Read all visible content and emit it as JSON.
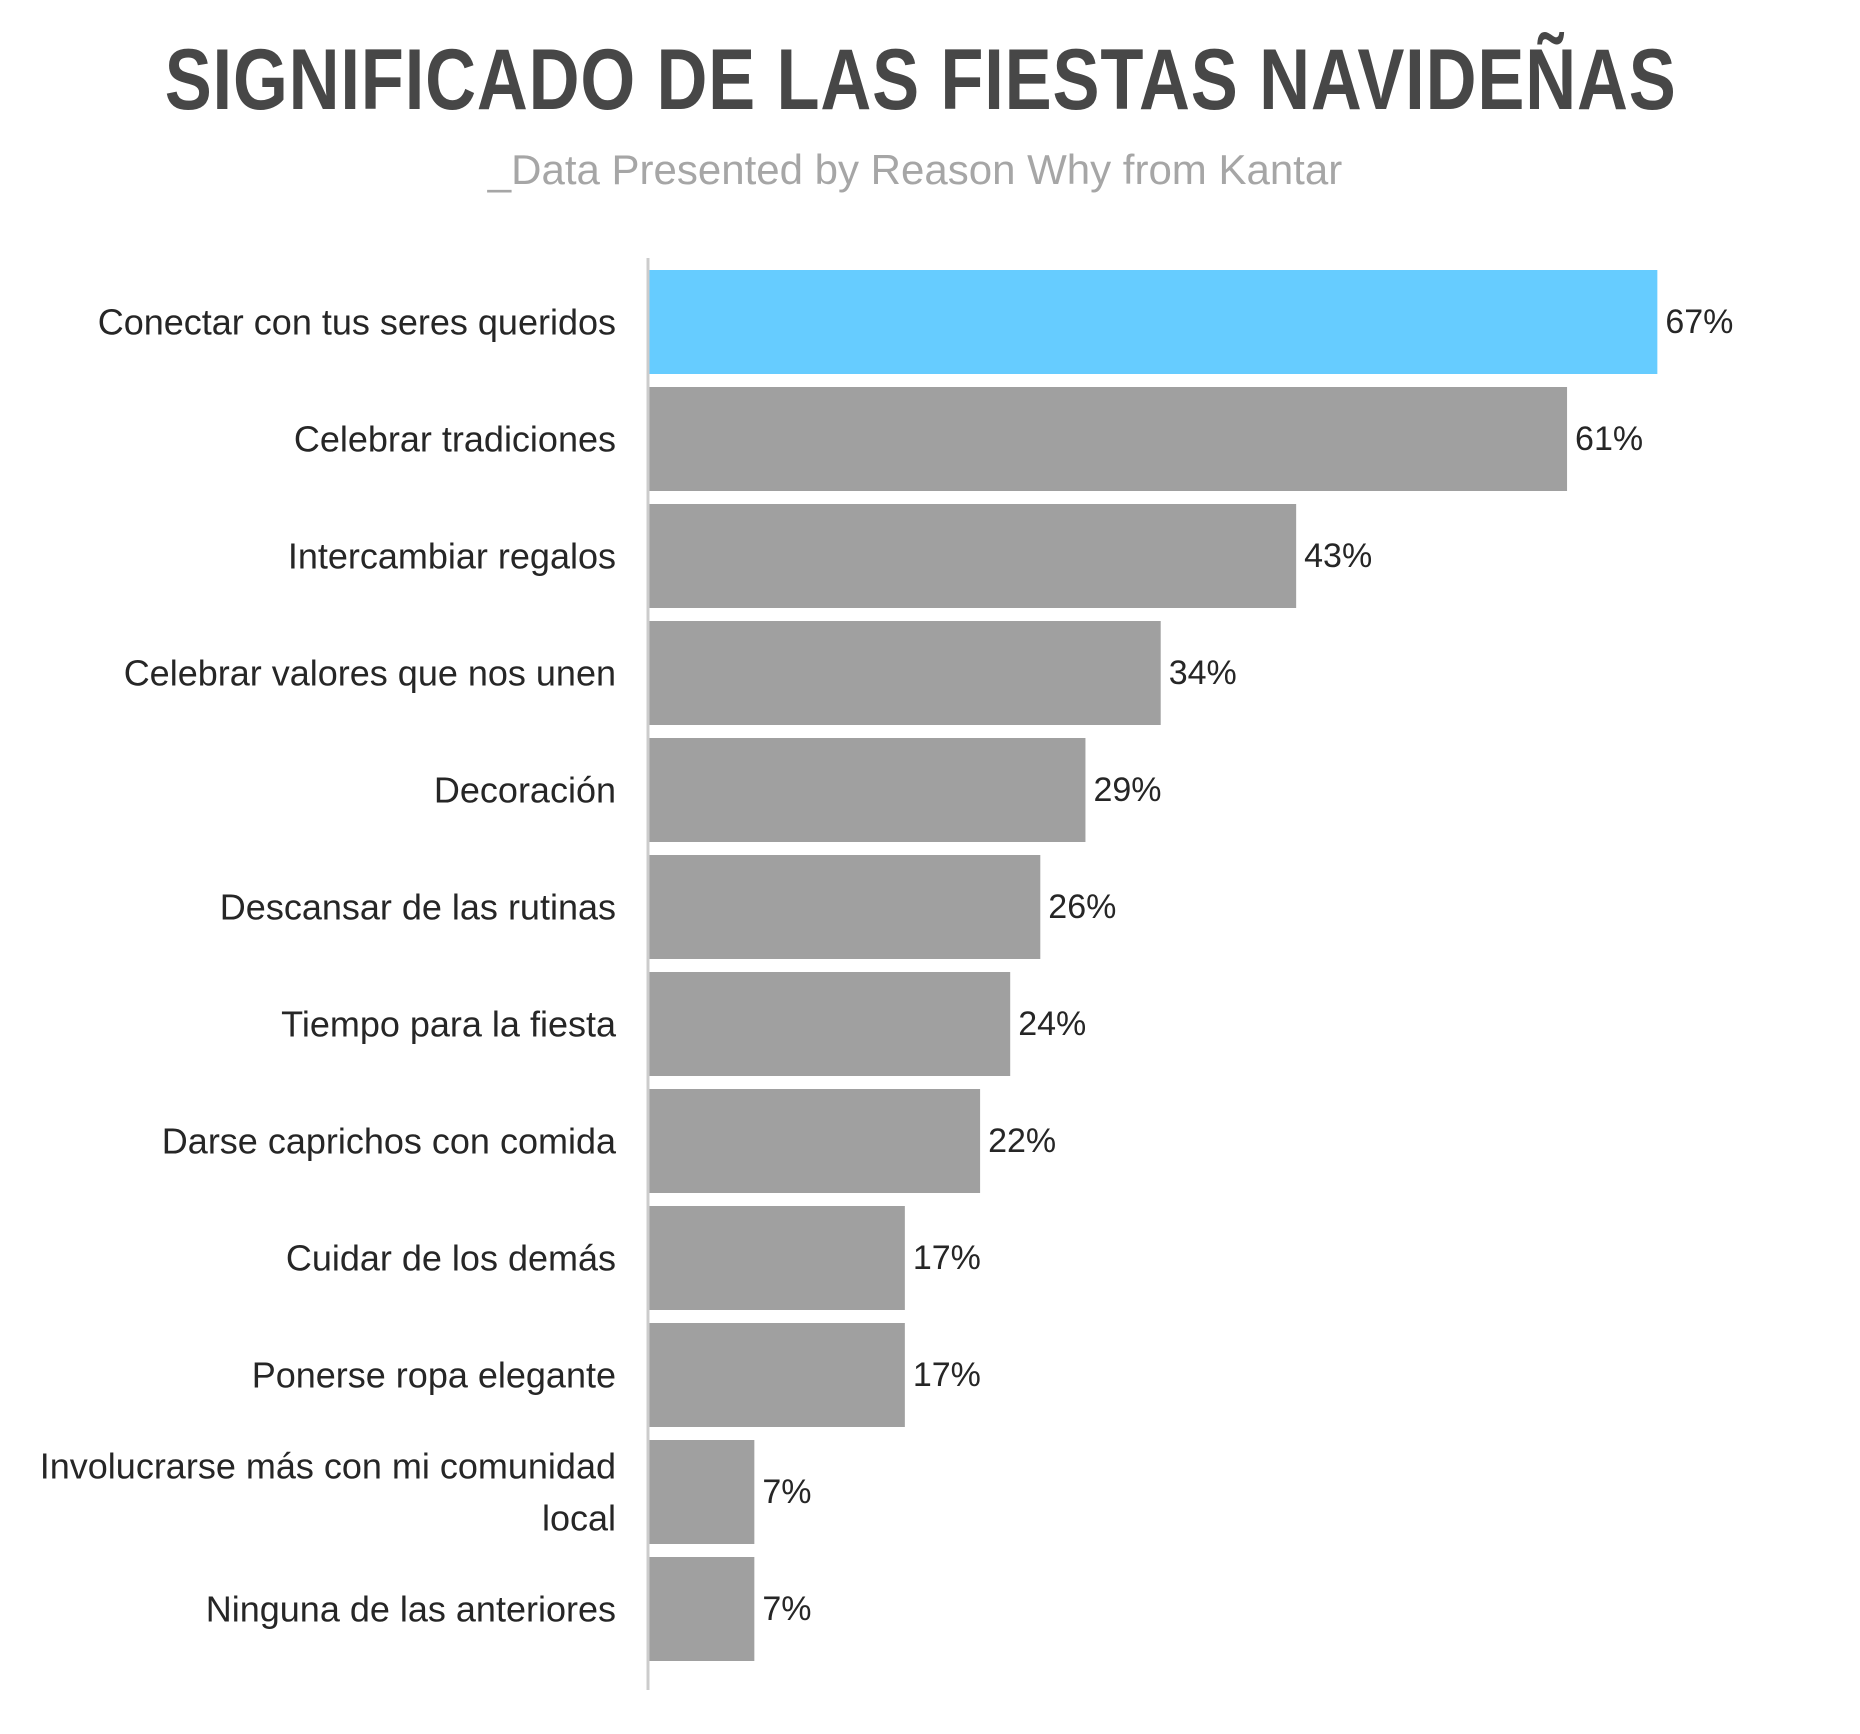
{
  "chart_data": {
    "type": "bar",
    "orientation": "horizontal",
    "title": "SIGNIFICADO DE LAS FIESTAS NAVIDEÑAS",
    "subtitle": "_Data Presented by Reason Why from Kantar",
    "categories": [
      "Conectar con tus seres queridos",
      "Celebrar tradiciones",
      "Intercambiar regalos",
      "Celebrar valores que nos unen",
      "Decoración",
      "Descansar de las rutinas",
      "Tiempo para la fiesta",
      "Darse caprichos con comida",
      "Cuidar de los demás",
      "Ponerse ropa elegante",
      "Involucrarse más con mi comunidad local",
      "Ninguna de las anteriores"
    ],
    "values": [
      67,
      61,
      43,
      34,
      29,
      26,
      24,
      22,
      17,
      17,
      7,
      7
    ],
    "value_labels": [
      "67%",
      "61%",
      "43%",
      "34%",
      "29%",
      "26%",
      "24%",
      "22%",
      "17%",
      "17%",
      "7%",
      "7%"
    ],
    "highlight_index": 0,
    "colors": {
      "highlight": "#66ccff",
      "bar": "#a0a0a0",
      "axis": "#cccccc",
      "title": "#474747",
      "subtitle": "#a6a6a6",
      "text": "#262626"
    },
    "xlabel": "",
    "ylabel": "",
    "xlim": [
      0,
      67
    ],
    "grid": false,
    "legend": "none"
  }
}
